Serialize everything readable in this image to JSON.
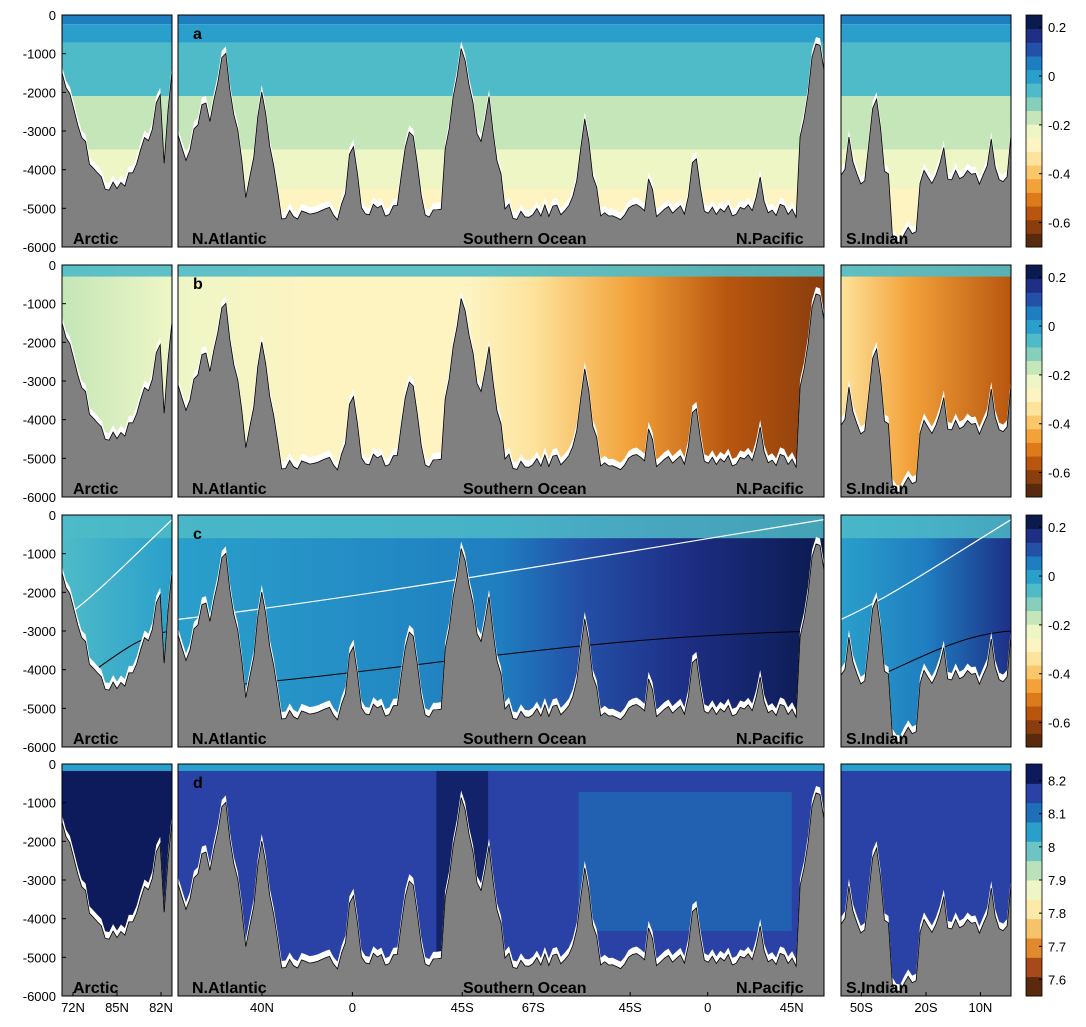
{
  "colors": {
    "land": "#808080",
    "white": "#ffffff",
    "contour_white": "#ffffff",
    "contour_black": "#000000",
    "diverging_scale": [
      "#5a2a0c",
      "#8a3d0d",
      "#b8560f",
      "#dd7a1b",
      "#f3a23a",
      "#fbc76a",
      "#fde39c",
      "#fdf4c2",
      "#eef6c5",
      "#c4e6b8",
      "#86cfbd",
      "#4fbbc8",
      "#2a9fcb",
      "#1f7ec0",
      "#2451a8",
      "#1e2f86",
      "#0b1a4f"
    ],
    "sequential_scale": [
      "#5a2a0c",
      "#a7491a",
      "#e08a2d",
      "#f6c26a",
      "#fde9a8",
      "#eef6c5",
      "#b9e2bb",
      "#6cc4c4",
      "#2a9fcb",
      "#1f6fb8",
      "#2a41a6",
      "#0d1a5c"
    ]
  },
  "chart_data": [
    {
      "panel": "a",
      "type": "heatmap",
      "ylim": [
        -6000,
        0
      ],
      "y_ticks": [
        "0",
        "-1000",
        "-2000",
        "-3000",
        "-4000",
        "-5000",
        "-6000"
      ],
      "region_labels": [
        "Arctic",
        "N.Atlantic",
        "Southern Ocean",
        "N.Pacific",
        "S.Indian"
      ],
      "colorbar": {
        "ticks": [
          "0.2",
          "0",
          "-0.2",
          "-0.4",
          "-0.6"
        ],
        "values": [
          0.2,
          0,
          -0.2,
          -0.4,
          -0.6
        ],
        "range": [
          -0.7,
          0.25
        ]
      }
    },
    {
      "panel": "b",
      "type": "heatmap",
      "ylim": [
        -6000,
        0
      ],
      "y_ticks": [
        "0",
        "-1000",
        "-2000",
        "-3000",
        "-4000",
        "-5000",
        "-6000"
      ],
      "region_labels": [
        "Arctic",
        "N.Atlantic",
        "Southern Ocean",
        "N.Pacific",
        "S.Indian"
      ],
      "colorbar": {
        "ticks": [
          "0.2",
          "0",
          "-0.2",
          "-0.4",
          "-0.6"
        ],
        "values": [
          0.2,
          0,
          -0.2,
          -0.4,
          -0.6
        ],
        "range": [
          -0.7,
          0.25
        ]
      }
    },
    {
      "panel": "c",
      "type": "heatmap",
      "ylim": [
        -6000,
        0
      ],
      "y_ticks": [
        "0",
        "-1000",
        "-2000",
        "-3000",
        "-4000",
        "-5000",
        "-6000"
      ],
      "region_labels": [
        "Arctic",
        "N.Atlantic",
        "Southern Ocean",
        "N.Pacific",
        "S.Indian"
      ],
      "colorbar": {
        "ticks": [
          "0.2",
          "0",
          "-0.2",
          "-0.4",
          "-0.6"
        ],
        "values": [
          0.2,
          0,
          -0.2,
          -0.4,
          -0.6
        ],
        "range": [
          -0.7,
          0.25
        ]
      }
    },
    {
      "panel": "d",
      "type": "heatmap",
      "ylim": [
        -6000,
        0
      ],
      "y_ticks": [
        "0",
        "-1000",
        "-2000",
        "-3000",
        "-4000",
        "-5000",
        "-6000"
      ],
      "region_labels": [
        "Arctic",
        "N.Atlantic",
        "Southern Ocean",
        "N.Pacific",
        "S.Indian"
      ],
      "colorbar": {
        "ticks": [
          "8.2",
          "8.1",
          "8",
          "7.9",
          "7.8",
          "7.7",
          "7.6"
        ],
        "values": [
          8.2,
          8.1,
          8,
          7.9,
          7.8,
          7.7,
          7.6
        ],
        "range": [
          7.55,
          8.25
        ]
      },
      "x_ticks": {
        "arctic": [
          "72N",
          "85N",
          "82N"
        ],
        "main": [
          "40N",
          "0",
          "45S",
          "67S",
          "45S",
          "0",
          "45N"
        ],
        "indian": [
          "50S",
          "20S",
          "10N"
        ]
      }
    }
  ]
}
